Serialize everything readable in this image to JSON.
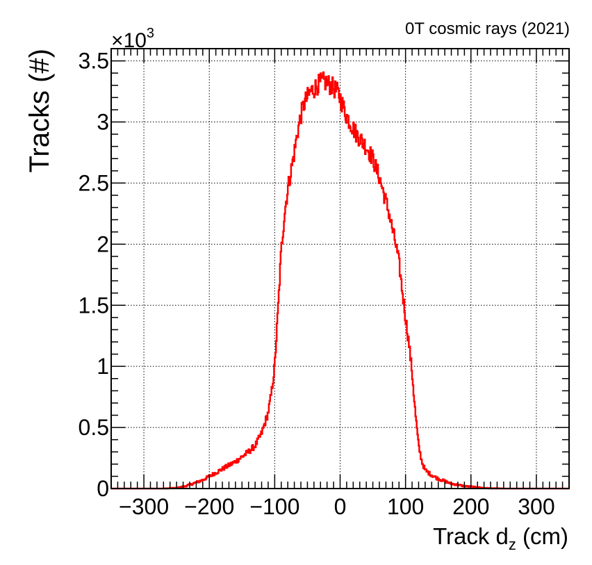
{
  "chart_data": {
    "type": "line",
    "title": "0T cosmic rays (2021)",
    "xlabel": "Track d",
    "xlabel_sub": "z",
    "xlabel_unit": " (cm)",
    "ylabel": "Tracks (#)",
    "y_multiplier_base": "×10",
    "y_multiplier_exp": "3",
    "xlim": [
      -350,
      350
    ],
    "ylim": [
      0,
      3.6
    ],
    "x_ticks": [
      -300,
      -200,
      -100,
      0,
      100,
      200,
      300
    ],
    "x_tick_labels": [
      "−300",
      "−200",
      "−100",
      "0",
      "100",
      "200",
      "300"
    ],
    "y_ticks": [
      0,
      0.5,
      1,
      1.5,
      2,
      2.5,
      3,
      3.5
    ],
    "y_tick_labels": [
      "0",
      "0.5",
      "1",
      "1.5",
      "2",
      "2.5",
      "3",
      "3.5"
    ],
    "grid": true,
    "line_color": "#ff0000",
    "series": [
      {
        "x": [
          -350,
          -300,
          -270,
          -250,
          -240,
          -230,
          -220,
          -210,
          -200,
          -190,
          -180,
          -170,
          -160,
          -150,
          -140,
          -130,
          -120,
          -110,
          -105,
          -100,
          -95,
          -90,
          -85,
          -80,
          -75,
          -70,
          -65,
          -60,
          -55,
          -50,
          -45,
          -40,
          -35,
          -30,
          -25,
          -20,
          -15,
          -10,
          -5,
          0,
          5,
          10,
          15,
          20,
          25,
          30,
          35,
          40,
          45,
          50,
          55,
          60,
          65,
          70,
          75,
          80,
          85,
          90,
          95,
          100,
          105,
          110,
          115,
          120,
          125,
          130,
          140,
          150,
          160,
          170,
          180,
          190,
          200,
          210,
          220,
          230,
          240,
          250,
          260,
          270,
          300,
          350
        ],
        "y": [
          0.0,
          0.0,
          0.0,
          0.005,
          0.015,
          0.03,
          0.05,
          0.07,
          0.1,
          0.13,
          0.16,
          0.19,
          0.22,
          0.26,
          0.3,
          0.35,
          0.45,
          0.62,
          0.78,
          1.0,
          1.45,
          1.95,
          2.25,
          2.45,
          2.6,
          2.75,
          2.92,
          3.05,
          3.15,
          3.2,
          3.25,
          3.27,
          3.3,
          3.32,
          3.33,
          3.32,
          3.3,
          3.28,
          3.25,
          3.2,
          3.12,
          3.05,
          3.0,
          2.95,
          2.9,
          2.87,
          2.83,
          2.8,
          2.75,
          2.7,
          2.62,
          2.55,
          2.45,
          2.35,
          2.25,
          2.12,
          2.0,
          1.85,
          1.62,
          1.4,
          1.2,
          0.95,
          0.62,
          0.35,
          0.22,
          0.15,
          0.11,
          0.08,
          0.06,
          0.04,
          0.03,
          0.02,
          0.015,
          0.01,
          0.005,
          0.002,
          0.001,
          0.0,
          0.0,
          0.0,
          0.0,
          0.0
        ]
      }
    ]
  }
}
